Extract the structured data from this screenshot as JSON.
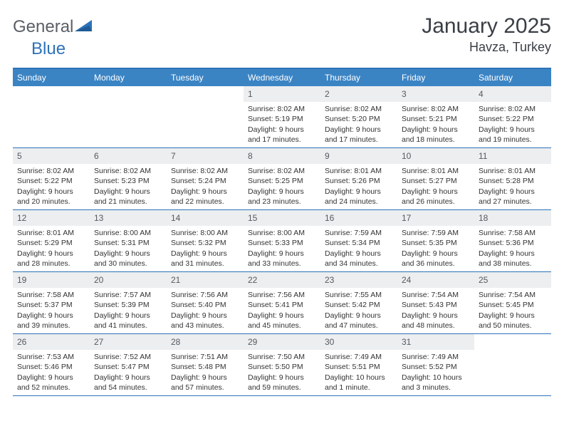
{
  "brand": {
    "part1": "General",
    "part2": "Blue"
  },
  "title": "January 2025",
  "location": "Havza, Turkey",
  "colors": {
    "header_bg": "#3b84c4",
    "border": "#2d72b8",
    "daynum_bg": "#eceef0",
    "text": "#333333",
    "logo_gray": "#5a5f66",
    "logo_blue": "#2d72b8"
  },
  "day_names": [
    "Sunday",
    "Monday",
    "Tuesday",
    "Wednesday",
    "Thursday",
    "Friday",
    "Saturday"
  ],
  "weeks": [
    [
      {
        "empty": true
      },
      {
        "empty": true
      },
      {
        "empty": true
      },
      {
        "n": "1",
        "sr": "8:02 AM",
        "ss": "5:19 PM",
        "dl": "9 hours and 17 minutes."
      },
      {
        "n": "2",
        "sr": "8:02 AM",
        "ss": "5:20 PM",
        "dl": "9 hours and 17 minutes."
      },
      {
        "n": "3",
        "sr": "8:02 AM",
        "ss": "5:21 PM",
        "dl": "9 hours and 18 minutes."
      },
      {
        "n": "4",
        "sr": "8:02 AM",
        "ss": "5:22 PM",
        "dl": "9 hours and 19 minutes."
      }
    ],
    [
      {
        "n": "5",
        "sr": "8:02 AM",
        "ss": "5:22 PM",
        "dl": "9 hours and 20 minutes."
      },
      {
        "n": "6",
        "sr": "8:02 AM",
        "ss": "5:23 PM",
        "dl": "9 hours and 21 minutes."
      },
      {
        "n": "7",
        "sr": "8:02 AM",
        "ss": "5:24 PM",
        "dl": "9 hours and 22 minutes."
      },
      {
        "n": "8",
        "sr": "8:02 AM",
        "ss": "5:25 PM",
        "dl": "9 hours and 23 minutes."
      },
      {
        "n": "9",
        "sr": "8:01 AM",
        "ss": "5:26 PM",
        "dl": "9 hours and 24 minutes."
      },
      {
        "n": "10",
        "sr": "8:01 AM",
        "ss": "5:27 PM",
        "dl": "9 hours and 26 minutes."
      },
      {
        "n": "11",
        "sr": "8:01 AM",
        "ss": "5:28 PM",
        "dl": "9 hours and 27 minutes."
      }
    ],
    [
      {
        "n": "12",
        "sr": "8:01 AM",
        "ss": "5:29 PM",
        "dl": "9 hours and 28 minutes."
      },
      {
        "n": "13",
        "sr": "8:00 AM",
        "ss": "5:31 PM",
        "dl": "9 hours and 30 minutes."
      },
      {
        "n": "14",
        "sr": "8:00 AM",
        "ss": "5:32 PM",
        "dl": "9 hours and 31 minutes."
      },
      {
        "n": "15",
        "sr": "8:00 AM",
        "ss": "5:33 PM",
        "dl": "9 hours and 33 minutes."
      },
      {
        "n": "16",
        "sr": "7:59 AM",
        "ss": "5:34 PM",
        "dl": "9 hours and 34 minutes."
      },
      {
        "n": "17",
        "sr": "7:59 AM",
        "ss": "5:35 PM",
        "dl": "9 hours and 36 minutes."
      },
      {
        "n": "18",
        "sr": "7:58 AM",
        "ss": "5:36 PM",
        "dl": "9 hours and 38 minutes."
      }
    ],
    [
      {
        "n": "19",
        "sr": "7:58 AM",
        "ss": "5:37 PM",
        "dl": "9 hours and 39 minutes."
      },
      {
        "n": "20",
        "sr": "7:57 AM",
        "ss": "5:39 PM",
        "dl": "9 hours and 41 minutes."
      },
      {
        "n": "21",
        "sr": "7:56 AM",
        "ss": "5:40 PM",
        "dl": "9 hours and 43 minutes."
      },
      {
        "n": "22",
        "sr": "7:56 AM",
        "ss": "5:41 PM",
        "dl": "9 hours and 45 minutes."
      },
      {
        "n": "23",
        "sr": "7:55 AM",
        "ss": "5:42 PM",
        "dl": "9 hours and 47 minutes."
      },
      {
        "n": "24",
        "sr": "7:54 AM",
        "ss": "5:43 PM",
        "dl": "9 hours and 48 minutes."
      },
      {
        "n": "25",
        "sr": "7:54 AM",
        "ss": "5:45 PM",
        "dl": "9 hours and 50 minutes."
      }
    ],
    [
      {
        "n": "26",
        "sr": "7:53 AM",
        "ss": "5:46 PM",
        "dl": "9 hours and 52 minutes."
      },
      {
        "n": "27",
        "sr": "7:52 AM",
        "ss": "5:47 PM",
        "dl": "9 hours and 54 minutes."
      },
      {
        "n": "28",
        "sr": "7:51 AM",
        "ss": "5:48 PM",
        "dl": "9 hours and 57 minutes."
      },
      {
        "n": "29",
        "sr": "7:50 AM",
        "ss": "5:50 PM",
        "dl": "9 hours and 59 minutes."
      },
      {
        "n": "30",
        "sr": "7:49 AM",
        "ss": "5:51 PM",
        "dl": "10 hours and 1 minute."
      },
      {
        "n": "31",
        "sr": "7:49 AM",
        "ss": "5:52 PM",
        "dl": "10 hours and 3 minutes."
      },
      {
        "empty": true
      }
    ]
  ],
  "labels": {
    "sunrise": "Sunrise:",
    "sunset": "Sunset:",
    "daylight": "Daylight:"
  }
}
